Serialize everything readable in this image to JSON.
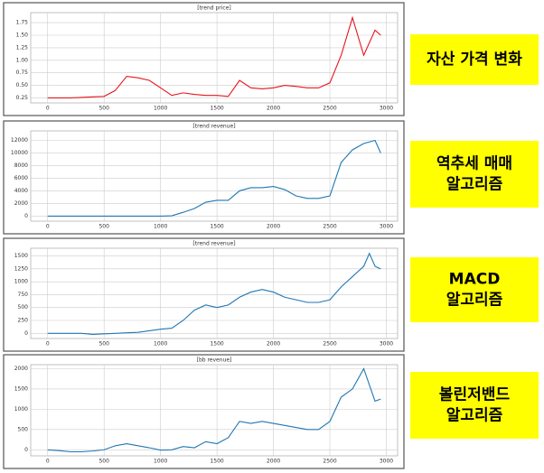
{
  "chart_data": [
    {
      "type": "line",
      "title": "[trend price]",
      "color": "#e8141c",
      "x": [
        0,
        100,
        200,
        300,
        400,
        500,
        600,
        700,
        800,
        900,
        1000,
        1100,
        1200,
        1300,
        1400,
        1500,
        1600,
        1700,
        1800,
        1900,
        2000,
        2100,
        2200,
        2300,
        2400,
        2500,
        2600,
        2700,
        2800,
        2900,
        2950
      ],
      "values": [
        0.25,
        0.25,
        0.25,
        0.26,
        0.27,
        0.28,
        0.4,
        0.68,
        0.65,
        0.6,
        0.45,
        0.3,
        0.35,
        0.32,
        0.3,
        0.3,
        0.28,
        0.6,
        0.45,
        0.43,
        0.45,
        0.5,
        0.48,
        0.45,
        0.45,
        0.55,
        1.1,
        1.85,
        1.1,
        1.6,
        1.5
      ],
      "xlim": [
        -150,
        3100
      ],
      "ylim": [
        0.15,
        1.95
      ],
      "xticks": [
        0,
        500,
        1000,
        1500,
        2000,
        2500,
        3000
      ],
      "yticks": [
        0.25,
        {
          "value": 0.5,
          "label": "0.50"
        },
        0.75,
        {
          "value": 1,
          "label": "1.00"
        },
        1.25,
        {
          "value": 1.5,
          "label": "1.50"
        },
        1.75
      ],
      "grid": true
    },
    {
      "type": "line",
      "title": "[trend revenue]",
      "color": "#1f77b4",
      "x": [
        0,
        100,
        200,
        300,
        400,
        500,
        600,
        700,
        800,
        900,
        1000,
        1100,
        1200,
        1300,
        1400,
        1500,
        1600,
        1700,
        1800,
        1900,
        2000,
        2100,
        2200,
        2300,
        2400,
        2500,
        2600,
        2700,
        2800,
        2900,
        2950
      ],
      "values": [
        0,
        0,
        0,
        0,
        0,
        0,
        0,
        0,
        0,
        0,
        0,
        50,
        600,
        1200,
        2200,
        2500,
        2500,
        4000,
        4500,
        4500,
        4700,
        4200,
        3200,
        2800,
        2800,
        3200,
        8500,
        10500,
        11500,
        12000,
        10000
      ],
      "xlim": [
        -150,
        3100
      ],
      "ylim": [
        -800,
        13500
      ],
      "xticks": [
        0,
        500,
        1000,
        1500,
        2000,
        2500,
        3000
      ],
      "yticks": [
        0,
        2000,
        4000,
        6000,
        8000,
        10000,
        12000
      ],
      "grid": true
    },
    {
      "type": "line",
      "title": "[trend revenue]",
      "color": "#1f77b4",
      "x": [
        0,
        100,
        200,
        300,
        400,
        500,
        600,
        700,
        800,
        900,
        1000,
        1100,
        1200,
        1300,
        1400,
        1500,
        1600,
        1700,
        1800,
        1900,
        2000,
        2100,
        2200,
        2300,
        2400,
        2500,
        2600,
        2700,
        2800,
        2850,
        2900,
        2950
      ],
      "values": [
        0,
        0,
        0,
        0,
        -20,
        -10,
        0,
        10,
        20,
        50,
        80,
        100,
        250,
        450,
        550,
        500,
        550,
        700,
        800,
        850,
        800,
        700,
        650,
        600,
        600,
        650,
        900,
        1100,
        1300,
        1550,
        1300,
        1250
      ],
      "xlim": [
        -150,
        3100
      ],
      "ylim": [
        -100,
        1650
      ],
      "xticks": [
        0,
        500,
        1000,
        1500,
        2000,
        2500,
        3000
      ],
      "yticks": [
        0,
        250,
        500,
        750,
        1000,
        1250,
        1500
      ],
      "grid": true
    },
    {
      "type": "line",
      "title": "[bb revenue]",
      "color": "#1f77b4",
      "x": [
        0,
        100,
        200,
        300,
        400,
        500,
        600,
        700,
        800,
        900,
        1000,
        1100,
        1200,
        1300,
        1400,
        1500,
        1600,
        1700,
        1800,
        1900,
        2000,
        2100,
        2200,
        2300,
        2400,
        2500,
        2600,
        2700,
        2800,
        2900,
        2950
      ],
      "values": [
        0,
        -20,
        -50,
        -50,
        -30,
        0,
        100,
        150,
        100,
        50,
        -10,
        0,
        80,
        50,
        200,
        150,
        300,
        700,
        650,
        700,
        650,
        600,
        550,
        500,
        500,
        700,
        1300,
        1500,
        2000,
        1200,
        1250
      ],
      "xlim": [
        -150,
        3100
      ],
      "ylim": [
        -150,
        2100
      ],
      "xticks": [
        0,
        500,
        1000,
        1500,
        2000,
        2500,
        3000
      ],
      "yticks": [
        0,
        500,
        1000,
        1500,
        2000
      ],
      "grid": true
    }
  ],
  "labels": [
    [
      "자산 가격 변화"
    ],
    [
      "역추세 매매",
      "알고리즘"
    ],
    [
      "MACD",
      "알고리즘"
    ],
    [
      "볼린저밴드",
      "알고리즘"
    ]
  ]
}
